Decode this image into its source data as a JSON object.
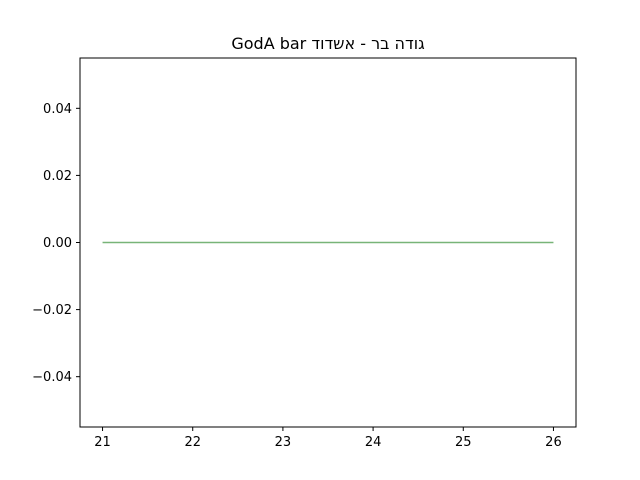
{
  "chart_data": {
    "type": "line",
    "title": "GodA bar גודה בר - אשדוד",
    "xlabel": "",
    "ylabel": "",
    "x": [
      21,
      22,
      23,
      24,
      25,
      26
    ],
    "series": [
      {
        "values": [
          0,
          0,
          0,
          0,
          0,
          0
        ],
        "color": "#78b478"
      }
    ],
    "xlim": [
      20.75,
      26.25
    ],
    "ylim": [
      -0.055,
      0.055
    ],
    "xticks": [
      21,
      22,
      23,
      24,
      25,
      26
    ],
    "xtick_labels": [
      "21",
      "22",
      "23",
      "24",
      "25",
      "26"
    ],
    "yticks": [
      -0.04,
      -0.02,
      0.0,
      0.02,
      0.04
    ],
    "ytick_labels": [
      "−0.04",
      "−0.02",
      "0.00",
      "0.02",
      "0.04"
    ],
    "grid": false,
    "legend": false
  }
}
